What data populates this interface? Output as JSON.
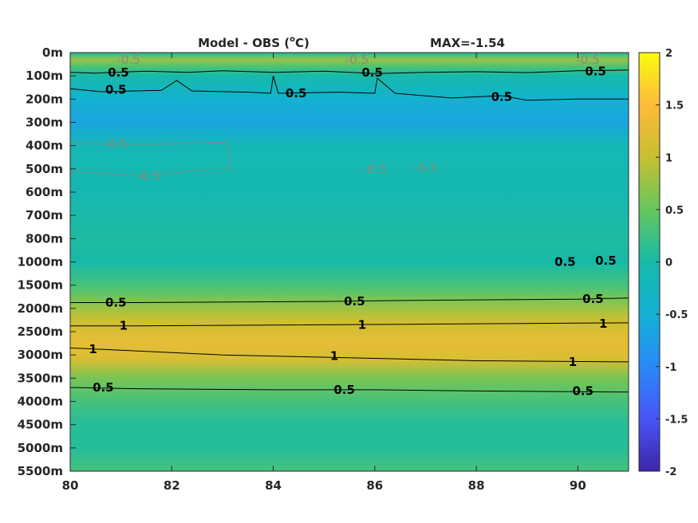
{
  "chart_data": {
    "type": "heatmap",
    "title": {
      "main": "Model - OBS (",
      "superscript": "o",
      "unit": "C)",
      "max_label": "MAX=-1.54"
    },
    "x_ticks": [
      "80",
      "82",
      "84",
      "86",
      "88",
      "90"
    ],
    "xlim": [
      80,
      91
    ],
    "y_ticks": [
      "0m",
      "100m",
      "200m",
      "300m",
      "400m",
      "500m",
      "600m",
      "700m",
      "800m",
      "1000m",
      "1500m",
      "2000m",
      "2500m",
      "3000m",
      "3500m",
      "4000m",
      "4500m",
      "5000m",
      "5500m"
    ],
    "colorbar": {
      "ticks": [
        "2",
        "1.5",
        "1",
        "0.5",
        "0",
        "-0.5",
        "-1",
        "-1.5",
        "-2"
      ],
      "range": [
        -2,
        2
      ],
      "colormap": "parula"
    },
    "depth_profile": [
      {
        "level": 0.0,
        "value": 0.05
      },
      {
        "level": 0.3,
        "value": 0.75
      },
      {
        "level": 0.6,
        "value": 0.35
      },
      {
        "level": 1.0,
        "value": 0.0
      },
      {
        "level": 2.0,
        "value": -0.45
      },
      {
        "level": 3.0,
        "value": -0.65
      },
      {
        "level": 4.0,
        "value": -0.15
      },
      {
        "level": 5.0,
        "value": -0.1
      },
      {
        "level": 6.0,
        "value": -0.1
      },
      {
        "level": 8.0,
        "value": 0.05
      },
      {
        "level": 9.0,
        "value": 0.0
      },
      {
        "level": 10.0,
        "value": 0.3
      },
      {
        "level": 10.7,
        "value": 0.65
      },
      {
        "level": 11.5,
        "value": 1.05
      },
      {
        "level": 12.5,
        "value": 1.3
      },
      {
        "level": 13.2,
        "value": 1.15
      },
      {
        "level": 14.0,
        "value": 0.6
      },
      {
        "level": 15.0,
        "value": 0.3
      },
      {
        "level": 16.0,
        "value": 0.1
      },
      {
        "level": 17.0,
        "value": 0.1
      },
      {
        "level": 18.0,
        "value": 0.3
      }
    ],
    "contour_labels": [
      {
        "x": 80.95,
        "level": 0.85,
        "text": "0.5",
        "style": "pos"
      },
      {
        "x": 85.95,
        "level": 0.85,
        "text": "0.5",
        "style": "pos"
      },
      {
        "x": 90.35,
        "level": 0.8,
        "text": "0.5",
        "style": "pos"
      },
      {
        "x": 80.9,
        "level": 1.6,
        "text": "0.5",
        "style": "pos"
      },
      {
        "x": 84.45,
        "level": 1.75,
        "text": "0.5",
        "style": "pos"
      },
      {
        "x": 88.5,
        "level": 1.9,
        "text": "0.5",
        "style": "pos"
      },
      {
        "x": 81.15,
        "level": 0.3,
        "text": "-0.5",
        "style": "neg"
      },
      {
        "x": 85.65,
        "level": 0.3,
        "text": "-0.5",
        "style": "neg"
      },
      {
        "x": 90.2,
        "level": 0.3,
        "text": "-0.5",
        "style": "neg"
      },
      {
        "x": 80.9,
        "level": 3.9,
        "text": "-0.5",
        "style": "neg"
      },
      {
        "x": 81.55,
        "level": 5.3,
        "text": "-0.5",
        "style": "neg"
      },
      {
        "x": 86.0,
        "level": 5.0,
        "text": "-0.5",
        "style": "neg"
      },
      {
        "x": 87.0,
        "level": 4.95,
        "text": "-0.5",
        "style": "neg"
      },
      {
        "x": 89.75,
        "level": 9.0,
        "text": "0.5",
        "style": "pos"
      },
      {
        "x": 90.55,
        "level": 8.95,
        "text": "0.5",
        "style": "pos"
      },
      {
        "x": 80.9,
        "level": 10.75,
        "text": "0.5",
        "style": "pos"
      },
      {
        "x": 85.6,
        "level": 10.7,
        "text": "0.5",
        "style": "pos"
      },
      {
        "x": 90.3,
        "level": 10.6,
        "text": "0.5",
        "style": "pos"
      },
      {
        "x": 81.05,
        "level": 11.75,
        "text": "1",
        "style": "pos"
      },
      {
        "x": 85.75,
        "level": 11.7,
        "text": "1",
        "style": "pos"
      },
      {
        "x": 90.5,
        "level": 11.65,
        "text": "1",
        "style": "pos"
      },
      {
        "x": 80.45,
        "level": 12.75,
        "text": "1",
        "style": "pos"
      },
      {
        "x": 85.2,
        "level": 13.05,
        "text": "1",
        "style": "pos"
      },
      {
        "x": 89.9,
        "level": 13.3,
        "text": "1",
        "style": "pos"
      },
      {
        "x": 80.65,
        "level": 14.4,
        "text": "0.5",
        "style": "pos"
      },
      {
        "x": 85.4,
        "level": 14.5,
        "text": "0.5",
        "style": "pos"
      },
      {
        "x": 90.1,
        "level": 14.55,
        "text": "0.5",
        "style": "pos"
      }
    ],
    "contour_lines": [
      {
        "style": "pos",
        "points": [
          [
            80,
            0.85
          ],
          [
            80.5,
            0.88
          ],
          [
            81.5,
            0.8
          ],
          [
            82.3,
            0.85
          ],
          [
            83,
            0.78
          ],
          [
            84,
            0.85
          ],
          [
            85,
            0.8
          ],
          [
            86,
            0.9
          ],
          [
            87,
            0.85
          ],
          [
            88,
            0.82
          ],
          [
            89,
            0.86
          ],
          [
            90,
            0.78
          ],
          [
            91,
            0.75
          ]
        ]
      },
      {
        "style": "pos",
        "points": [
          [
            80,
            1.55
          ],
          [
            80.6,
            1.68
          ],
          [
            81.8,
            1.62
          ],
          [
            82.1,
            1.2
          ],
          [
            82.4,
            1.65
          ],
          [
            83.5,
            1.7
          ],
          [
            83.95,
            1.75
          ],
          [
            84,
            1.0
          ],
          [
            84.1,
            1.75
          ],
          [
            85.3,
            1.7
          ],
          [
            86,
            1.75
          ],
          [
            86.05,
            1.1
          ],
          [
            86.4,
            1.75
          ],
          [
            87.5,
            1.95
          ],
          [
            88.5,
            1.85
          ],
          [
            89,
            2.05
          ],
          [
            90,
            2.0
          ],
          [
            91,
            2.0
          ]
        ]
      },
      {
        "style": "pos",
        "points": [
          [
            80,
            10.75
          ],
          [
            81.3,
            10.75
          ],
          [
            85,
            10.7
          ],
          [
            87,
            10.65
          ],
          [
            90,
            10.6
          ],
          [
            91,
            10.55
          ]
        ]
      },
      {
        "style": "pos",
        "points": [
          [
            80,
            11.75
          ],
          [
            81.3,
            11.75
          ],
          [
            84,
            11.72
          ],
          [
            88,
            11.66
          ],
          [
            91,
            11.62
          ]
        ]
      },
      {
        "style": "pos",
        "points": [
          [
            80,
            12.7
          ],
          [
            81,
            12.8
          ],
          [
            83,
            13.0
          ],
          [
            86,
            13.15
          ],
          [
            88,
            13.25
          ],
          [
            91,
            13.3
          ]
        ]
      },
      {
        "style": "pos",
        "points": [
          [
            80,
            14.4
          ],
          [
            81.2,
            14.45
          ],
          [
            84,
            14.5
          ],
          [
            86,
            14.5
          ],
          [
            88,
            14.55
          ],
          [
            91,
            14.6
          ]
        ]
      },
      {
        "style": "neg",
        "points": [
          [
            80,
            3.9
          ],
          [
            81.5,
            3.95
          ],
          [
            83.1,
            3.85
          ],
          [
            83.15,
            5.0
          ],
          [
            82.5,
            5.05
          ],
          [
            81.5,
            5.3
          ],
          [
            80,
            5.1
          ]
        ]
      }
    ]
  }
}
